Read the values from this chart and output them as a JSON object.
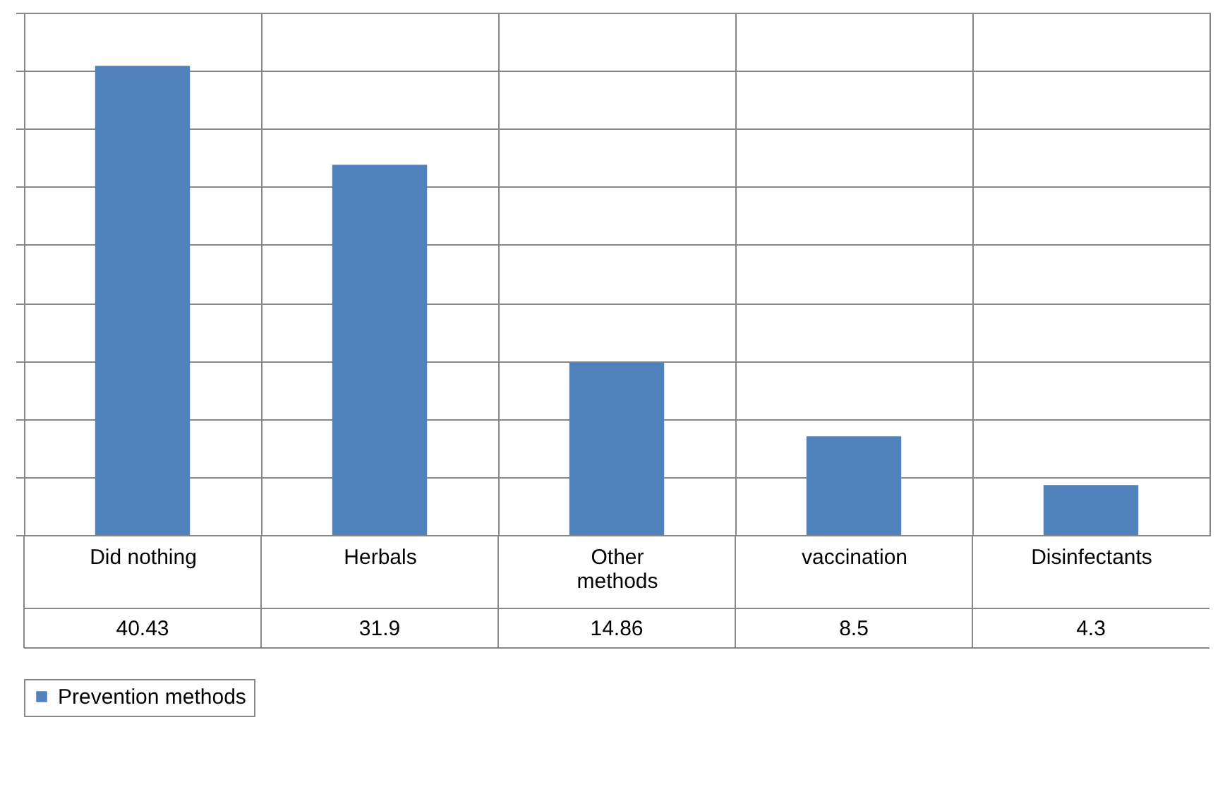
{
  "chart_data": {
    "type": "bar",
    "categories": [
      "Did nothing",
      "Herbals",
      "Other methods",
      "vaccination",
      "Disinfectants"
    ],
    "series": [
      {
        "name": "Prevention methods",
        "color": "#4f81bd",
        "values": [
          40.43,
          31.9,
          14.86,
          8.5,
          4.3
        ]
      }
    ],
    "ylim": [
      0,
      45
    ],
    "yticks": [
      {
        "value": 0,
        "label": null
      },
      {
        "value": 5,
        "label": null
      },
      {
        "value": 10,
        "label": null
      },
      {
        "value": 15,
        "label": null
      },
      {
        "value": 20,
        "label": null
      },
      {
        "value": 25,
        "label": null
      },
      {
        "value": 30,
        "label": null
      },
      {
        "value": 35,
        "label": null
      },
      {
        "value": 40,
        "label": null
      },
      {
        "value": 45,
        "label": null
      }
    ],
    "tick_labels": "x",
    "grid": "y",
    "data_labels": true,
    "legend": "bottom"
  }
}
